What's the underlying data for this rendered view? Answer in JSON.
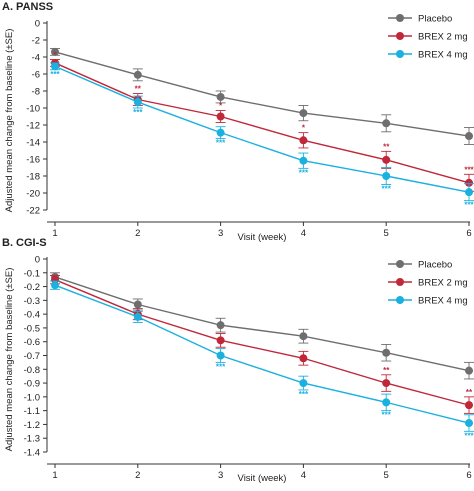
{
  "chart_data": [
    {
      "type": "line",
      "title": "A. PANSS",
      "xlabel": "Visit (week)",
      "ylabel": "Adjusted mean change from baseline (±SE)",
      "x": [
        1,
        2,
        3,
        4,
        5,
        6
      ],
      "x_tick_labels": [
        "1",
        "2",
        "3",
        "4",
        "5",
        "6"
      ],
      "ylim": [
        -22,
        0
      ],
      "y_ticks": [
        0,
        -2,
        -4,
        -6,
        -8,
        -10,
        -12,
        -14,
        -16,
        -18,
        -20,
        -22
      ],
      "y_tick_labels": [
        "0",
        "-2",
        "-4",
        "-6",
        "-8",
        "-10",
        "-12",
        "-14",
        "-16",
        "-18",
        "-20",
        "-22"
      ],
      "legend_position": "top-right",
      "series": [
        {
          "name": "Placebo",
          "color": "#6e6e6e",
          "values": [
            -3.4,
            -6.1,
            -8.7,
            -10.6,
            -11.8,
            -13.3
          ],
          "se": [
            0.4,
            0.7,
            0.7,
            0.9,
            1.0,
            1.0
          ],
          "annotations": [
            "",
            "",
            "",
            "",
            "",
            ""
          ]
        },
        {
          "name": "BREX 2 mg",
          "color": "#c0283a",
          "values": [
            -4.7,
            -9.0,
            -11.0,
            -13.8,
            -16.1,
            -18.8
          ],
          "se": [
            0.4,
            0.7,
            0.7,
            0.9,
            1.0,
            1.0
          ],
          "annotations": [
            "*",
            "**",
            "*",
            "*",
            "**",
            "***"
          ]
        },
        {
          "name": "BREX 4 mg",
          "color": "#1ab0e0",
          "values": [
            -5.1,
            -9.3,
            -12.9,
            -16.2,
            -18.0,
            -19.9
          ],
          "se": [
            0.4,
            0.7,
            0.7,
            0.9,
            1.0,
            1.0
          ],
          "annotations": [
            "***",
            "***",
            "***",
            "***",
            "***",
            "***"
          ]
        }
      ]
    },
    {
      "type": "line",
      "title": "B. CGI-S",
      "xlabel": "Visit (week)",
      "ylabel": "Adjusted mean change from baseline (±SE)",
      "x": [
        1,
        2,
        3,
        4,
        5,
        6
      ],
      "x_tick_labels": [
        "1",
        "2",
        "3",
        "4",
        "5",
        "6"
      ],
      "ylim": [
        -1.4,
        0
      ],
      "y_ticks": [
        0,
        -0.1,
        -0.2,
        -0.3,
        -0.4,
        -0.5,
        -0.6,
        -0.7,
        -0.8,
        -0.9,
        -1.0,
        -1.1,
        -1.2,
        -1.3,
        -1.4
      ],
      "y_tick_labels": [
        "0",
        "-0.1",
        "-0.2",
        "-0.3",
        "-0.4",
        "-0.5",
        "-0.6",
        "-0.7",
        "-0.8",
        "-0.9",
        "-1.0",
        "-1.1",
        "-1.2",
        "-1.3",
        "-1.4"
      ],
      "legend_position": "top-right",
      "series": [
        {
          "name": "Placebo",
          "color": "#6e6e6e",
          "values": [
            -0.13,
            -0.33,
            -0.48,
            -0.56,
            -0.68,
            -0.81
          ],
          "se": [
            0.03,
            0.04,
            0.05,
            0.05,
            0.06,
            0.06
          ],
          "annotations": [
            "",
            "",
            "",
            "",
            "",
            ""
          ]
        },
        {
          "name": "BREX 2 mg",
          "color": "#c0283a",
          "values": [
            -0.15,
            -0.4,
            -0.59,
            -0.72,
            -0.9,
            -1.06
          ],
          "se": [
            0.03,
            0.04,
            0.05,
            0.05,
            0.06,
            0.06
          ],
          "annotations": [
            "",
            "",
            "",
            "",
            "**",
            "**"
          ]
        },
        {
          "name": "BREX 4 mg",
          "color": "#1ab0e0",
          "values": [
            -0.19,
            -0.42,
            -0.7,
            -0.9,
            -1.04,
            -1.19
          ],
          "se": [
            0.03,
            0.04,
            0.05,
            0.05,
            0.06,
            0.06
          ],
          "annotations": [
            "",
            "",
            "***",
            "***",
            "***",
            "***"
          ]
        }
      ]
    }
  ]
}
